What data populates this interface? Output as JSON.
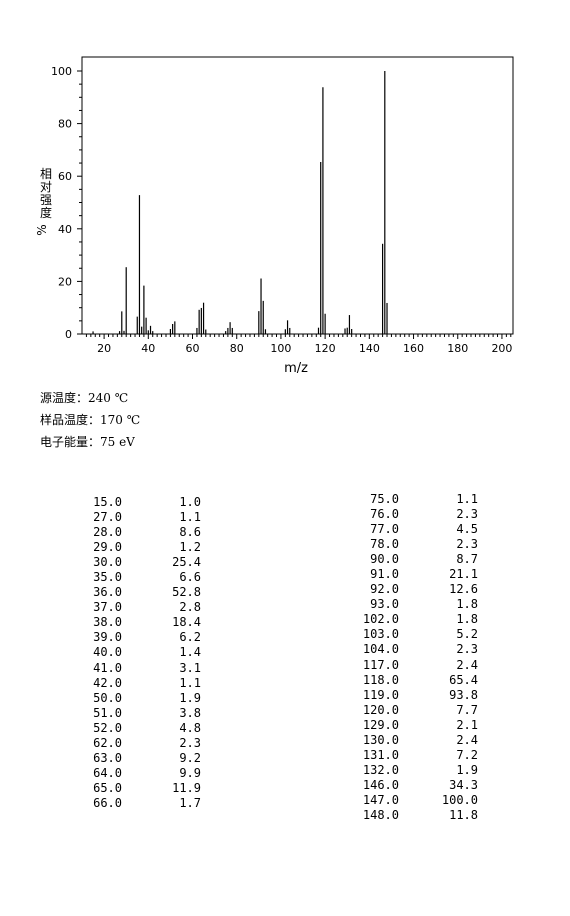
{
  "chart_data": {
    "type": "bar",
    "xlabel": "m/z",
    "ylabel_chars": [
      "相",
      "对",
      "强",
      "度"
    ],
    "ylabel_unit": "%",
    "xlim": [
      10,
      205
    ],
    "ylim": [
      0,
      100
    ],
    "xticks": [
      20,
      40,
      60,
      80,
      100,
      120,
      140,
      160,
      180,
      200
    ],
    "yticks": [
      0,
      20,
      40,
      60,
      80,
      100
    ],
    "peaks": [
      {
        "mz": 15,
        "intensity": 1.0
      },
      {
        "mz": 27,
        "intensity": 1.1
      },
      {
        "mz": 28,
        "intensity": 8.6
      },
      {
        "mz": 29,
        "intensity": 1.2
      },
      {
        "mz": 30,
        "intensity": 25.4
      },
      {
        "mz": 35,
        "intensity": 6.6
      },
      {
        "mz": 36,
        "intensity": 52.8
      },
      {
        "mz": 37,
        "intensity": 2.8
      },
      {
        "mz": 38,
        "intensity": 18.4
      },
      {
        "mz": 39,
        "intensity": 6.2
      },
      {
        "mz": 40,
        "intensity": 1.4
      },
      {
        "mz": 41,
        "intensity": 3.1
      },
      {
        "mz": 42,
        "intensity": 1.1
      },
      {
        "mz": 50,
        "intensity": 1.9
      },
      {
        "mz": 51,
        "intensity": 3.8
      },
      {
        "mz": 52,
        "intensity": 4.8
      },
      {
        "mz": 62,
        "intensity": 2.3
      },
      {
        "mz": 63,
        "intensity": 9.2
      },
      {
        "mz": 64,
        "intensity": 9.9
      },
      {
        "mz": 65,
        "intensity": 11.9
      },
      {
        "mz": 66,
        "intensity": 1.7
      },
      {
        "mz": 75,
        "intensity": 1.1
      },
      {
        "mz": 76,
        "intensity": 2.3
      },
      {
        "mz": 77,
        "intensity": 4.5
      },
      {
        "mz": 78,
        "intensity": 2.3
      },
      {
        "mz": 90,
        "intensity": 8.7
      },
      {
        "mz": 91,
        "intensity": 21.1
      },
      {
        "mz": 92,
        "intensity": 12.6
      },
      {
        "mz": 93,
        "intensity": 1.8
      },
      {
        "mz": 102,
        "intensity": 1.8
      },
      {
        "mz": 103,
        "intensity": 5.2
      },
      {
        "mz": 104,
        "intensity": 2.3
      },
      {
        "mz": 117,
        "intensity": 2.4
      },
      {
        "mz": 118,
        "intensity": 65.4
      },
      {
        "mz": 119,
        "intensity": 93.8
      },
      {
        "mz": 120,
        "intensity": 7.7
      },
      {
        "mz": 129,
        "intensity": 2.1
      },
      {
        "mz": 130,
        "intensity": 2.4
      },
      {
        "mz": 131,
        "intensity": 7.2
      },
      {
        "mz": 132,
        "intensity": 1.9
      },
      {
        "mz": 146,
        "intensity": 34.3
      },
      {
        "mz": 147,
        "intensity": 100.0
      },
      {
        "mz": 148,
        "intensity": 11.8
      }
    ]
  },
  "conditions": {
    "source_temp": "源温度：240 ℃",
    "sample_temp": "样品温度：170 ℃",
    "electron_energy": "电子能量：75 eV"
  },
  "table_left": [
    [
      "15.0",
      "1.0"
    ],
    [
      "27.0",
      "1.1"
    ],
    [
      "28.0",
      "8.6"
    ],
    [
      "29.0",
      "1.2"
    ],
    [
      "30.0",
      "25.4"
    ],
    [
      "35.0",
      "6.6"
    ],
    [
      "36.0",
      "52.8"
    ],
    [
      "37.0",
      "2.8"
    ],
    [
      "38.0",
      "18.4"
    ],
    [
      "39.0",
      "6.2"
    ],
    [
      "40.0",
      "1.4"
    ],
    [
      "41.0",
      "3.1"
    ],
    [
      "42.0",
      "1.1"
    ],
    [
      "50.0",
      "1.9"
    ],
    [
      "51.0",
      "3.8"
    ],
    [
      "52.0",
      "4.8"
    ],
    [
      "62.0",
      "2.3"
    ],
    [
      "63.0",
      "9.2"
    ],
    [
      "64.0",
      "9.9"
    ],
    [
      "65.0",
      "11.9"
    ],
    [
      "66.0",
      "1.7"
    ]
  ],
  "table_right": [
    [
      "75.0",
      "1.1"
    ],
    [
      "76.0",
      "2.3"
    ],
    [
      "77.0",
      "4.5"
    ],
    [
      "78.0",
      "2.3"
    ],
    [
      "90.0",
      "8.7"
    ],
    [
      "91.0",
      "21.1"
    ],
    [
      "92.0",
      "12.6"
    ],
    [
      "93.0",
      "1.8"
    ],
    [
      "102.0",
      "1.8"
    ],
    [
      "103.0",
      "5.2"
    ],
    [
      "104.0",
      "2.3"
    ],
    [
      "117.0",
      "2.4"
    ],
    [
      "118.0",
      "65.4"
    ],
    [
      "119.0",
      "93.8"
    ],
    [
      "120.0",
      "7.7"
    ],
    [
      "129.0",
      "2.1"
    ],
    [
      "130.0",
      "2.4"
    ],
    [
      "131.0",
      "7.2"
    ],
    [
      "132.0",
      "1.9"
    ],
    [
      "146.0",
      "34.3"
    ],
    [
      "147.0",
      "100.0"
    ],
    [
      "148.0",
      "11.8"
    ]
  ]
}
